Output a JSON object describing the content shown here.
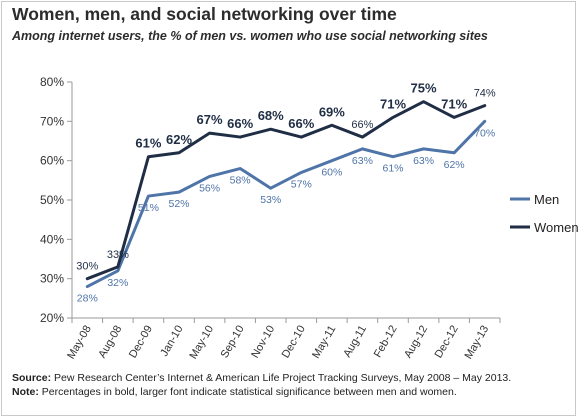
{
  "header": {
    "title": "Women, men, and social networking over time",
    "subtitle": "Among internet users, the % of men vs. women who use social networking sites"
  },
  "footer": {
    "source_label": "Source:",
    "source_text": "Pew Research Center’s Internet & American Life Project Tracking Surveys, May 2008 – May 2013.",
    "note_label": "Note:",
    "note_text": "Percentages in bold, larger font indicate statistical significance between men and women."
  },
  "colors": {
    "men": "#4f74a8",
    "women": "#1f2d45",
    "axis": "#9a9a9a",
    "text": "#2c2c2c"
  },
  "chart_data": {
    "type": "line",
    "categories": [
      "May-08",
      "Aug-08",
      "Dec-09",
      "Jan-10",
      "May-10",
      "Sep-10",
      "Nov-10",
      "Dec-10",
      "May-11",
      "Aug-11",
      "Feb-12",
      "Aug-12",
      "Dec-12",
      "May-13"
    ],
    "ylim": [
      20,
      80
    ],
    "yticks": [
      20,
      30,
      40,
      50,
      60,
      70,
      80
    ],
    "ytick_labels": [
      "20%",
      "30%",
      "40%",
      "50%",
      "60%",
      "70%",
      "80%"
    ],
    "grid": false,
    "legend": "right",
    "series": [
      {
        "name": "Men",
        "values": [
          28,
          32,
          51,
          52,
          56,
          58,
          53,
          57,
          60,
          63,
          61,
          63,
          62,
          70
        ],
        "labels": [
          "28%",
          "32%",
          "51%",
          "52%",
          "56%",
          "58%",
          "53%",
          "57%",
          "60%",
          "63%",
          "61%",
          "63%",
          "62%",
          "70%"
        ]
      },
      {
        "name": "Women",
        "values": [
          30,
          33,
          61,
          62,
          67,
          66,
          68,
          66,
          69,
          66,
          71,
          75,
          71,
          74
        ],
        "labels": [
          "30%",
          "33%",
          "61%",
          "62%",
          "67%",
          "66%",
          "68%",
          "66%",
          "69%",
          "66%",
          "71%",
          "75%",
          "71%",
          "74%"
        ]
      }
    ]
  }
}
